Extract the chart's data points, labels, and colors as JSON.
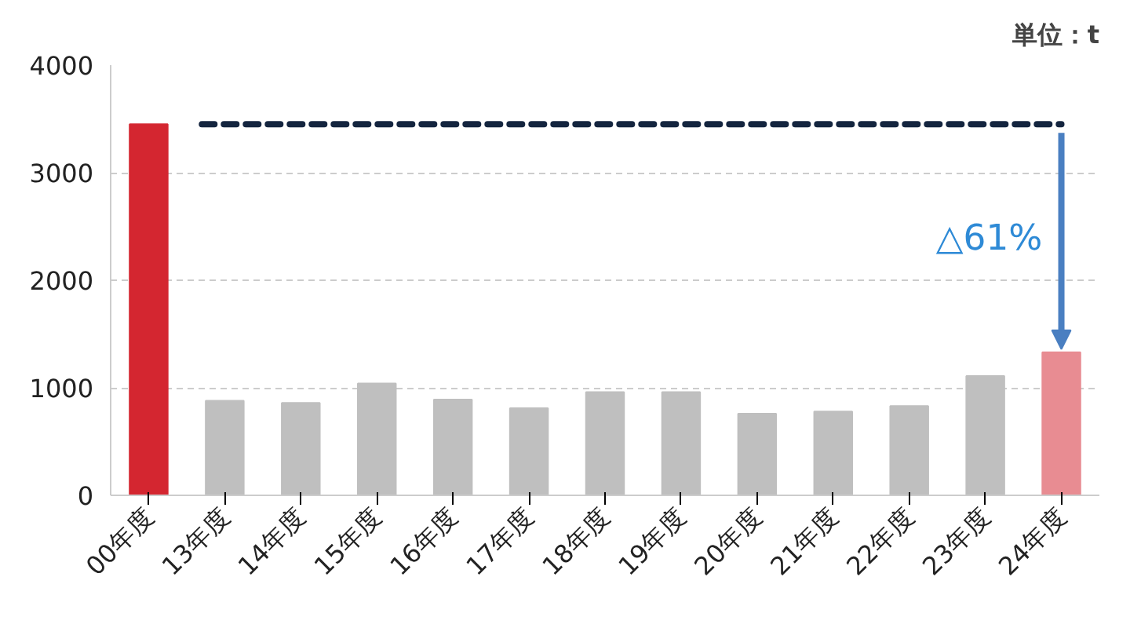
{
  "chart_data": {
    "type": "bar",
    "categories": [
      "00年度",
      "13年度",
      "14年度",
      "15年度",
      "16年度",
      "17年度",
      "18年度",
      "19年度",
      "20年度",
      "21年度",
      "22年度",
      "23年度",
      "24年度"
    ],
    "values": [
      3450,
      880,
      860,
      1040,
      890,
      810,
      960,
      960,
      760,
      780,
      830,
      1110,
      1330
    ],
    "colors": [
      "#d42630",
      "#bfbfbf",
      "#bfbfbf",
      "#bfbfbf",
      "#bfbfbf",
      "#bfbfbf",
      "#bfbfbf",
      "#bfbfbf",
      "#bfbfbf",
      "#bfbfbf",
      "#bfbfbf",
      "#bfbfbf",
      "#e88c92"
    ],
    "ylim": [
      0,
      4000
    ],
    "yticks": [
      0,
      1000,
      2000,
      3000,
      4000
    ],
    "grid": "y",
    "ref_lines": [
      {
        "axis": "y",
        "value": 3450,
        "color": "#14253f",
        "line_style": "dashed"
      }
    ],
    "annotations": [
      "単位：t",
      "△61%"
    ]
  }
}
